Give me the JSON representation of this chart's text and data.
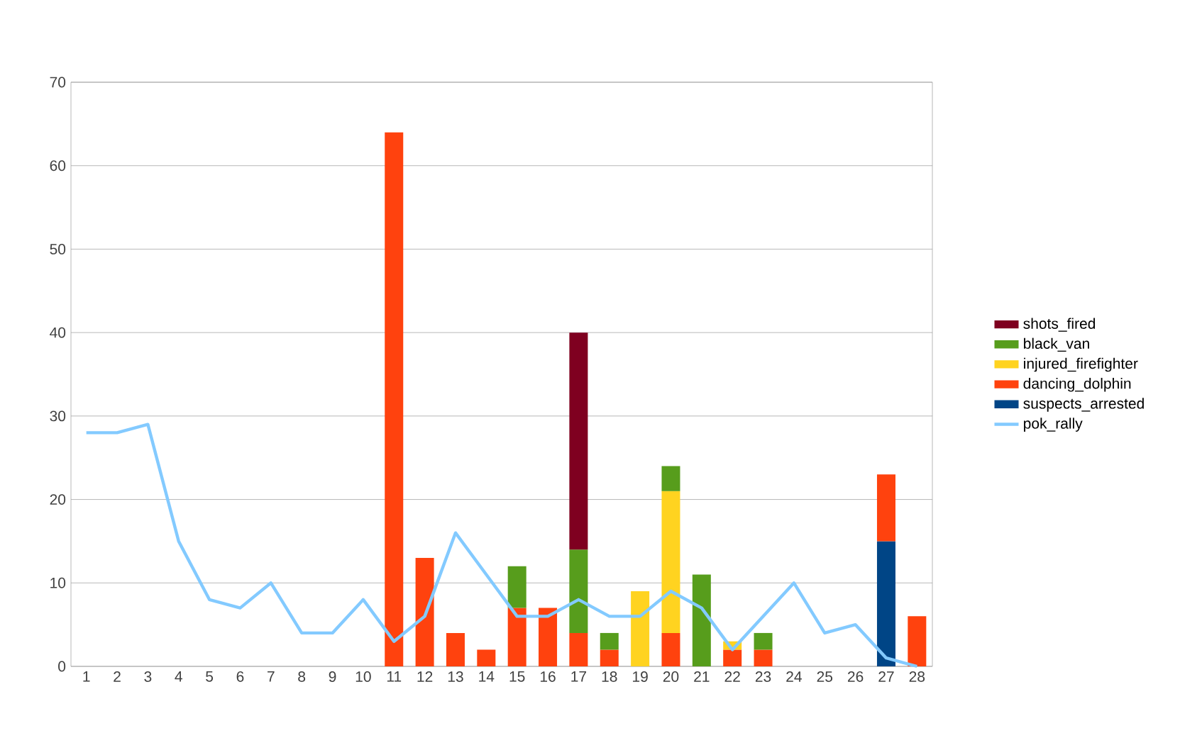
{
  "chart_data": {
    "type": "bar",
    "stacked": true,
    "categories": [
      "1",
      "2",
      "3",
      "4",
      "5",
      "6",
      "7",
      "8",
      "9",
      "10",
      "11",
      "12",
      "13",
      "14",
      "15",
      "16",
      "17",
      "18",
      "19",
      "20",
      "21",
      "22",
      "23",
      "24",
      "25",
      "26",
      "27",
      "28"
    ],
    "series": [
      {
        "name": "suspects_arrested",
        "color": "#004586",
        "values": [
          null,
          null,
          null,
          null,
          null,
          null,
          null,
          null,
          null,
          null,
          null,
          null,
          null,
          null,
          null,
          null,
          null,
          null,
          null,
          null,
          null,
          null,
          null,
          null,
          null,
          null,
          15,
          null
        ]
      },
      {
        "name": "dancing_dolphin",
        "color": "#ff420e",
        "values": [
          null,
          null,
          null,
          null,
          null,
          null,
          null,
          null,
          null,
          null,
          64,
          13,
          4,
          2,
          7,
          7,
          4,
          2,
          null,
          4,
          null,
          2,
          2,
          null,
          null,
          null,
          8,
          6
        ]
      },
      {
        "name": "injured_firefighter",
        "color": "#ffd320",
        "values": [
          null,
          null,
          null,
          null,
          null,
          null,
          null,
          null,
          null,
          null,
          null,
          null,
          null,
          null,
          null,
          null,
          null,
          null,
          9,
          17,
          null,
          1,
          null,
          null,
          null,
          null,
          null,
          null
        ]
      },
      {
        "name": "black_van",
        "color": "#579d1c",
        "values": [
          null,
          null,
          null,
          null,
          null,
          null,
          null,
          null,
          null,
          null,
          null,
          null,
          null,
          null,
          5,
          null,
          10,
          2,
          null,
          3,
          11,
          null,
          2,
          null,
          null,
          null,
          null,
          null
        ]
      },
      {
        "name": "shots_fired",
        "color": "#7f0020",
        "values": [
          null,
          null,
          null,
          null,
          null,
          null,
          null,
          null,
          null,
          null,
          null,
          null,
          null,
          null,
          null,
          null,
          26,
          null,
          null,
          null,
          null,
          null,
          null,
          null,
          null,
          null,
          null,
          null
        ]
      },
      {
        "name": "pok_rally",
        "type": "line",
        "color": "#83caff",
        "values": [
          28,
          28,
          29,
          15,
          8,
          7,
          10,
          4,
          4,
          8,
          3,
          6,
          16,
          11,
          6,
          6,
          8,
          6,
          6,
          9,
          7,
          2,
          6,
          10,
          4,
          5,
          1,
          0
        ]
      }
    ],
    "ylim": [
      0,
      70
    ],
    "yticks": [
      0,
      10,
      20,
      30,
      40,
      50,
      60,
      70
    ],
    "grid": "y",
    "legend": "right"
  }
}
